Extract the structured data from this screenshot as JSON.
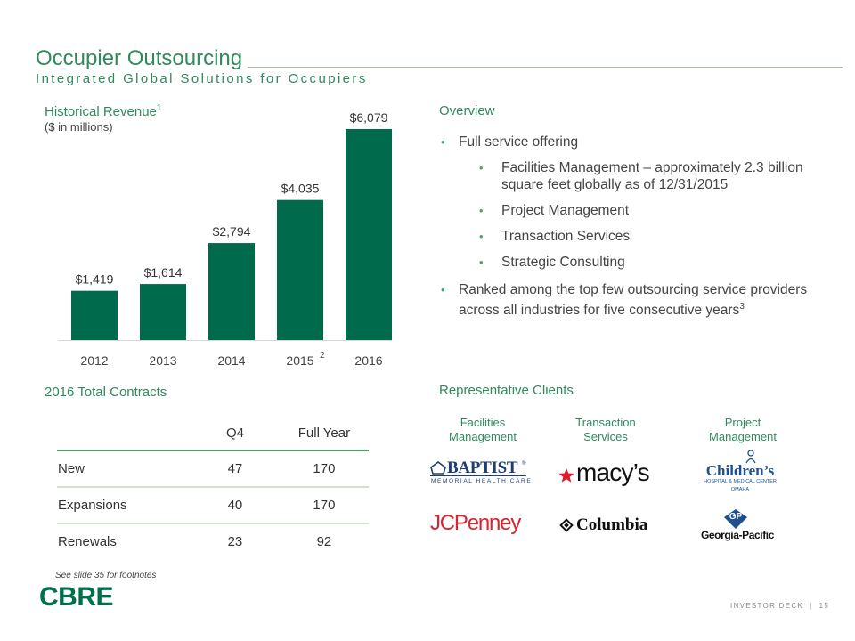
{
  "header": {
    "title": "Occupier Outsourcing",
    "subtitle": "Integrated Global Solutions for Occupiers"
  },
  "revenue": {
    "heading": "Historical Revenue",
    "heading_sup": "1",
    "units": "($ in millions)"
  },
  "chart_data": {
    "type": "bar",
    "title": "Historical Revenue",
    "ylabel": "$ in millions",
    "categories": [
      "2012",
      "2013",
      "2014",
      "2015",
      "2016"
    ],
    "category_footnotes": [
      "",
      "",
      "",
      "2",
      ""
    ],
    "values": [
      1419,
      1614,
      2794,
      4035,
      6079
    ],
    "value_labels": [
      "$1,419",
      "$1,614",
      "$2,794",
      "$4,035",
      "$6,079"
    ],
    "ylim": [
      0,
      6079
    ],
    "grid": false,
    "bar_color": "#006a4d"
  },
  "overview": {
    "heading": "Overview",
    "items": [
      {
        "level": 1,
        "text": "Full service offering",
        "sup": ""
      },
      {
        "level": 2,
        "text": "Facilities Management – approximately 2.3 billion square feet globally as of 12/31/2015",
        "sup": ""
      },
      {
        "level": 2,
        "text": "Project Management",
        "sup": ""
      },
      {
        "level": 2,
        "text": "Transaction Services",
        "sup": ""
      },
      {
        "level": 2,
        "text": "Strategic Consulting",
        "sup": ""
      },
      {
        "level": 1,
        "text": "Ranked among the top few outsourcing service providers across all industries for five consecutive years",
        "sup": "3"
      }
    ]
  },
  "contracts": {
    "heading": "2016 Total Contracts",
    "columns": [
      "",
      "Q4",
      "Full Year"
    ],
    "rows": [
      {
        "label": "New",
        "q4": "47",
        "full_year": "170"
      },
      {
        "label": "Expansions",
        "q4": "40",
        "full_year": "170"
      },
      {
        "label": "Renewals",
        "q4": "23",
        "full_year": "92"
      }
    ]
  },
  "clients": {
    "heading": "Representative Clients",
    "columns": [
      {
        "line1": "Facilities",
        "line2": "Management"
      },
      {
        "line1": "Transaction",
        "line2": "Services"
      },
      {
        "line1": "Project",
        "line2": "Management"
      }
    ],
    "logos": {
      "baptist": {
        "name": "BAPTIST",
        "sub": "MEMORIAL HEALTH CARE",
        "mark": "®"
      },
      "macys": {
        "name": "macy’s"
      },
      "childrens": {
        "name": "Children’s",
        "sub": "HOSPITAL & MEDICAL CENTER",
        "sub2": "OMAHA"
      },
      "jcpenney": {
        "name": "JCPenney"
      },
      "columbia": {
        "name": "Columbia"
      },
      "georgia_pacific": {
        "name": "Georgia-Pacific",
        "mark": "GP"
      }
    }
  },
  "footer": {
    "footnote": "See slide 35 for footnotes",
    "brand": "CBRE",
    "deck": "INVESTOR DECK",
    "separator": "|",
    "page": "15"
  },
  "colors": {
    "accent": "#2f8a5c",
    "bar": "#006a4d",
    "cbre": "#00704a",
    "jcpenney": "#d6262f",
    "macys_star": "#e11a2b",
    "gp_blue": "#1d4f91"
  }
}
